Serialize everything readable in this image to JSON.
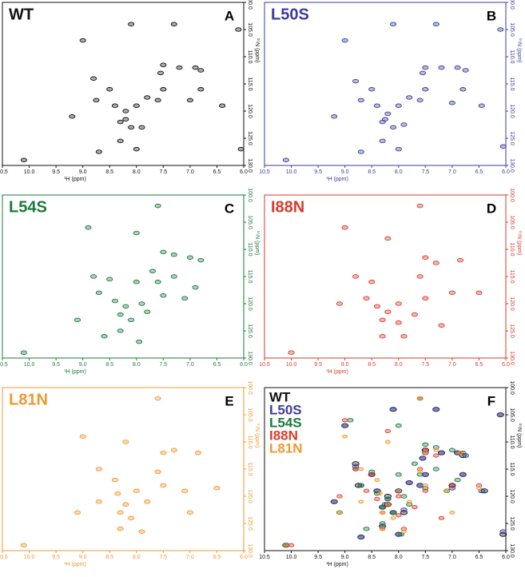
{
  "chart_data": [
    {
      "type": "scatter",
      "label": "WT",
      "panel": "A",
      "color": "#111111",
      "xlabel": "¹H (ppm)",
      "ylabel": "¹⁵N (ppm)",
      "xlim": [
        10.5,
        6.0
      ],
      "ylim": [
        130,
        100
      ],
      "xticks": [
        10.5,
        {
          "value": 10,
          "label": "10.0"
        },
        9.5,
        {
          "value": 9,
          "label": "9.0"
        },
        8.5,
        {
          "value": 8,
          "label": "8.0"
        },
        7.5,
        {
          "value": 7,
          "label": "7.0"
        },
        6.5,
        {
          "value": 6,
          "label": "6.0"
        }
      ],
      "yticks": [
        {
          "value": 100,
          "label": "100.0"
        },
        {
          "value": 105,
          "label": "105.0"
        },
        {
          "value": 110,
          "label": "110.0"
        },
        {
          "value": 115,
          "label": "115.0"
        },
        {
          "value": 120,
          "label": "120.0"
        },
        {
          "value": 125,
          "label": "125.0"
        },
        {
          "value": 130,
          "label": "130.0"
        }
      ],
      "x": [
        9.0,
        8.1,
        7.3,
        10.1,
        6.1,
        7.5,
        7.55,
        7.2,
        6.9,
        6.8,
        8.8,
        8.5,
        8.75,
        8.4,
        8.2,
        8.0,
        8.3,
        8.1,
        7.9,
        8.2,
        7.8,
        7.5,
        7.6,
        7.0,
        6.8,
        6.4,
        8.3,
        8.0,
        8.7,
        9.2,
        6.05
      ],
      "y": [
        107,
        104,
        104,
        129,
        105,
        111.5,
        113,
        112,
        112,
        112.5,
        114,
        116,
        118,
        119,
        120,
        119,
        122,
        123,
        123,
        121.5,
        117.5,
        116,
        118,
        118,
        116,
        119,
        125.5,
        127,
        127.5,
        121,
        127
      ]
    },
    {
      "type": "scatter",
      "label": "L50S",
      "panel": "B",
      "color": "#3c3c9c",
      "xlabel": "¹H (ppm)",
      "ylabel": "¹⁵N (ppm)",
      "xlim": [
        10.5,
        6.0
      ],
      "ylim": [
        130,
        100
      ],
      "xticks": [
        10.5,
        {
          "value": 10,
          "label": "10.0"
        },
        9.5,
        {
          "value": 9,
          "label": "9.0"
        },
        8.5,
        {
          "value": 8,
          "label": "8.0"
        },
        7.5,
        {
          "value": 7,
          "label": "7.0"
        },
        6.5,
        {
          "value": 6,
          "label": "6.0"
        }
      ],
      "yticks": [
        {
          "value": 100,
          "label": "100.0"
        },
        {
          "value": 105,
          "label": "105.0"
        },
        {
          "value": 110,
          "label": "110.0"
        },
        {
          "value": 115,
          "label": "115.0"
        },
        {
          "value": 120,
          "label": "120.0"
        },
        {
          "value": 125,
          "label": "125.0"
        },
        {
          "value": 130,
          "label": "130.0"
        }
      ],
      "x": [
        9.0,
        8.1,
        7.3,
        10.1,
        6.1,
        7.5,
        7.55,
        7.2,
        6.9,
        6.75,
        8.8,
        8.5,
        8.7,
        8.4,
        8.2,
        8.0,
        8.3,
        8.1,
        7.9,
        8.25,
        7.8,
        7.5,
        7.6,
        7.0,
        6.8,
        6.45,
        8.3,
        8.0,
        8.7,
        9.2,
        6.05
      ],
      "y": [
        107,
        104,
        104,
        129,
        105,
        112,
        113,
        112,
        112,
        112.5,
        114.5,
        116,
        118,
        119,
        120.5,
        119,
        122,
        123,
        122.5,
        121.5,
        117.5,
        116,
        118,
        118.5,
        116,
        119,
        125.5,
        127,
        127.5,
        121,
        126.5
      ]
    },
    {
      "type": "scatter",
      "label": "L54S",
      "panel": "C",
      "color": "#1b7a3c",
      "xlabel": "¹H (ppm)",
      "ylabel": "¹⁵N (ppm)",
      "xlim": [
        10.5,
        6.0
      ],
      "ylim": [
        130,
        100
      ],
      "xticks": [
        10.5,
        {
          "value": 10,
          "label": "10.0"
        },
        9.5,
        {
          "value": 9,
          "label": "9.0"
        },
        8.5,
        {
          "value": 8,
          "label": "8.0"
        },
        7.5,
        {
          "value": 7,
          "label": "7.0"
        },
        6.5,
        {
          "value": 6,
          "label": "6.0"
        }
      ],
      "yticks": [
        {
          "value": 100,
          "label": "100.0"
        },
        {
          "value": 105,
          "label": "105.0"
        },
        {
          "value": 110,
          "label": "110.0"
        },
        {
          "value": 115,
          "label": "115.0"
        },
        {
          "value": 120,
          "label": "120.0"
        },
        {
          "value": 125,
          "label": "125.0"
        },
        {
          "value": 130,
          "label": "130.0"
        }
      ],
      "x": [
        7.6,
        8.9,
        8.0,
        7.5,
        7.3,
        7.0,
        6.8,
        8.8,
        8.5,
        8.7,
        8.4,
        8.2,
        7.9,
        8.3,
        8.1,
        7.8,
        7.5,
        7.6,
        7.1,
        6.9,
        7.7,
        8.0,
        8.3,
        8.6,
        7.95,
        10.1,
        9.1,
        7.3
      ],
      "y": [
        102,
        106,
        107,
        110.5,
        111,
        111.5,
        112,
        115,
        115.5,
        118,
        119.5,
        120.5,
        120,
        122,
        123,
        121.5,
        118.5,
        116,
        119,
        117,
        114,
        116,
        125,
        126,
        127,
        129,
        123,
        115
      ]
    },
    {
      "type": "scatter",
      "label": "I88N",
      "panel": "D",
      "color": "#d93a2b",
      "xlabel": "¹H (ppm)",
      "ylabel": "¹⁵N (ppm)",
      "xlim": [
        10.5,
        6.0
      ],
      "ylim": [
        130,
        100
      ],
      "xticks": [
        10.5,
        {
          "value": 10,
          "label": "10.0"
        },
        9.5,
        {
          "value": 9,
          "label": "9.0"
        },
        8.5,
        {
          "value": 8,
          "label": "8.0"
        },
        7.5,
        {
          "value": 7,
          "label": "7.0"
        },
        6.5,
        {
          "value": 6,
          "label": "6.0"
        }
      ],
      "yticks": [
        {
          "value": 100,
          "label": "100.0"
        },
        {
          "value": 105,
          "label": "105.0"
        },
        {
          "value": 110,
          "label": "110.0"
        },
        {
          "value": 115,
          "label": "115.0"
        },
        {
          "value": 120,
          "label": "120.0"
        },
        {
          "value": 125,
          "label": "125.0"
        },
        {
          "value": 130,
          "label": "130.0"
        }
      ],
      "x": [
        7.6,
        9.0,
        8.2,
        7.5,
        7.3,
        6.85,
        8.8,
        8.5,
        8.6,
        8.4,
        8.2,
        8.0,
        8.3,
        8.0,
        7.7,
        7.5,
        7.0,
        6.5,
        7.6,
        8.3,
        7.9,
        10.0,
        9.1,
        7.2
      ],
      "y": [
        102,
        106,
        108,
        111.5,
        112.5,
        112,
        115,
        116,
        119,
        120.5,
        121.5,
        120,
        123,
        123.5,
        122,
        119,
        118,
        118,
        115,
        126,
        126,
        129,
        120,
        124
      ]
    },
    {
      "type": "scatter",
      "label": "L81N",
      "panel": "E",
      "color": "#f0982f",
      "xlabel": "¹H (ppm)",
      "ylabel": "¹⁵N (ppm)",
      "xlim": [
        10.5,
        6.0
      ],
      "ylim": [
        130,
        100
      ],
      "xticks": [
        10.5,
        {
          "value": 10,
          "label": "10.0"
        },
        9.5,
        {
          "value": 9,
          "label": "9.0"
        },
        8.5,
        {
          "value": 8,
          "label": "8.0"
        },
        7.5,
        {
          "value": 7,
          "label": "7.0"
        },
        6.5,
        {
          "value": 6,
          "label": "6.0"
        }
      ],
      "yticks": [
        {
          "value": 100,
          "label": "100.0"
        },
        {
          "value": 105,
          "label": "105.0"
        },
        {
          "value": 110,
          "label": "110.0"
        },
        {
          "value": 115,
          "label": "115.0"
        },
        {
          "value": 120,
          "label": "120.0"
        },
        {
          "value": 125,
          "label": "125.0"
        },
        {
          "value": 130,
          "label": "130.0"
        }
      ],
      "x": [
        7.6,
        9.0,
        8.2,
        7.5,
        7.3,
        6.85,
        8.7,
        8.4,
        8.7,
        8.35,
        8.2,
        8.0,
        8.3,
        8.1,
        7.8,
        7.5,
        7.1,
        6.5,
        7.6,
        8.3,
        7.9,
        10.1,
        9.1,
        7.0
      ],
      "y": [
        102,
        109,
        110,
        112,
        111.5,
        112,
        115,
        117,
        121,
        119.5,
        121.5,
        119,
        123,
        124,
        121,
        118,
        119,
        118.5,
        115.5,
        126,
        126.5,
        129,
        123,
        123
      ]
    },
    {
      "type": "overlay",
      "panel": "F",
      "color": "#111111",
      "xlabel": "¹H (ppm)",
      "ylabel": "¹⁵N (ppm)",
      "xlim": [
        10.5,
        6.0
      ],
      "ylim": [
        130,
        100
      ],
      "xticks": [
        10.5,
        {
          "value": 10,
          "label": "10.0"
        },
        9.5,
        {
          "value": 9,
          "label": "9.0"
        },
        8.5,
        {
          "value": 8,
          "label": "8.0"
        },
        7.5,
        {
          "value": 7,
          "label": "7.0"
        },
        6.5,
        {
          "value": 6,
          "label": "6.0"
        }
      ],
      "yticks": [
        {
          "value": 100,
          "label": "100.0"
        },
        {
          "value": 105,
          "label": "105.0"
        },
        {
          "value": 110,
          "label": "110.0"
        },
        {
          "value": 115,
          "label": "115.0"
        },
        {
          "value": 120,
          "label": "120.0"
        },
        {
          "value": 125,
          "label": "125.0"
        },
        {
          "value": 130,
          "label": "130.0"
        }
      ],
      "series": [
        {
          "name": "WT",
          "color": "#111111"
        },
        {
          "name": "L50S",
          "color": "#3c3c9c"
        },
        {
          "name": "L54S",
          "color": "#1b7a3c"
        },
        {
          "name": "I88N",
          "color": "#d93a2b"
        },
        {
          "name": "L81N",
          "color": "#f0982f"
        }
      ]
    }
  ]
}
